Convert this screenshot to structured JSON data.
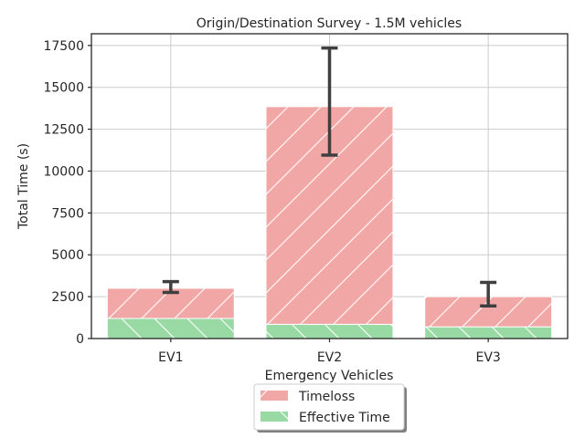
{
  "chart_data": {
    "type": "bar",
    "stacked": true,
    "title": "Origin/Destination Survey - 1.5M vehicles",
    "xlabel": "Emergency Vehicles",
    "ylabel": "Total Time (s)",
    "categories": [
      "EV1",
      "EV2",
      "EV3"
    ],
    "series": [
      {
        "name": "Effective Time",
        "values": [
          1200,
          850,
          700
        ],
        "color": "#98d9a4",
        "hatch": "backslash"
      },
      {
        "name": "Timeloss",
        "values": [
          1800,
          13000,
          1800
        ],
        "color": "#f2a7a7",
        "hatch": "slash"
      }
    ],
    "error_bars": [
      {
        "category": "EV1",
        "low": 2750,
        "high": 3400
      },
      {
        "category": "EV2",
        "low": 10950,
        "high": 17350
      },
      {
        "category": "EV3",
        "low": 1950,
        "high": 3350
      }
    ],
    "ylim": [
      0,
      18200
    ],
    "yticks": [
      0,
      2500,
      5000,
      7500,
      10000,
      12500,
      15000,
      17500
    ],
    "ytick_labels": [
      "0",
      "2500",
      "5000",
      "7500",
      "10000",
      "12500",
      "15000",
      "17500"
    ],
    "grid": true,
    "legend_position": "bottom-center"
  }
}
